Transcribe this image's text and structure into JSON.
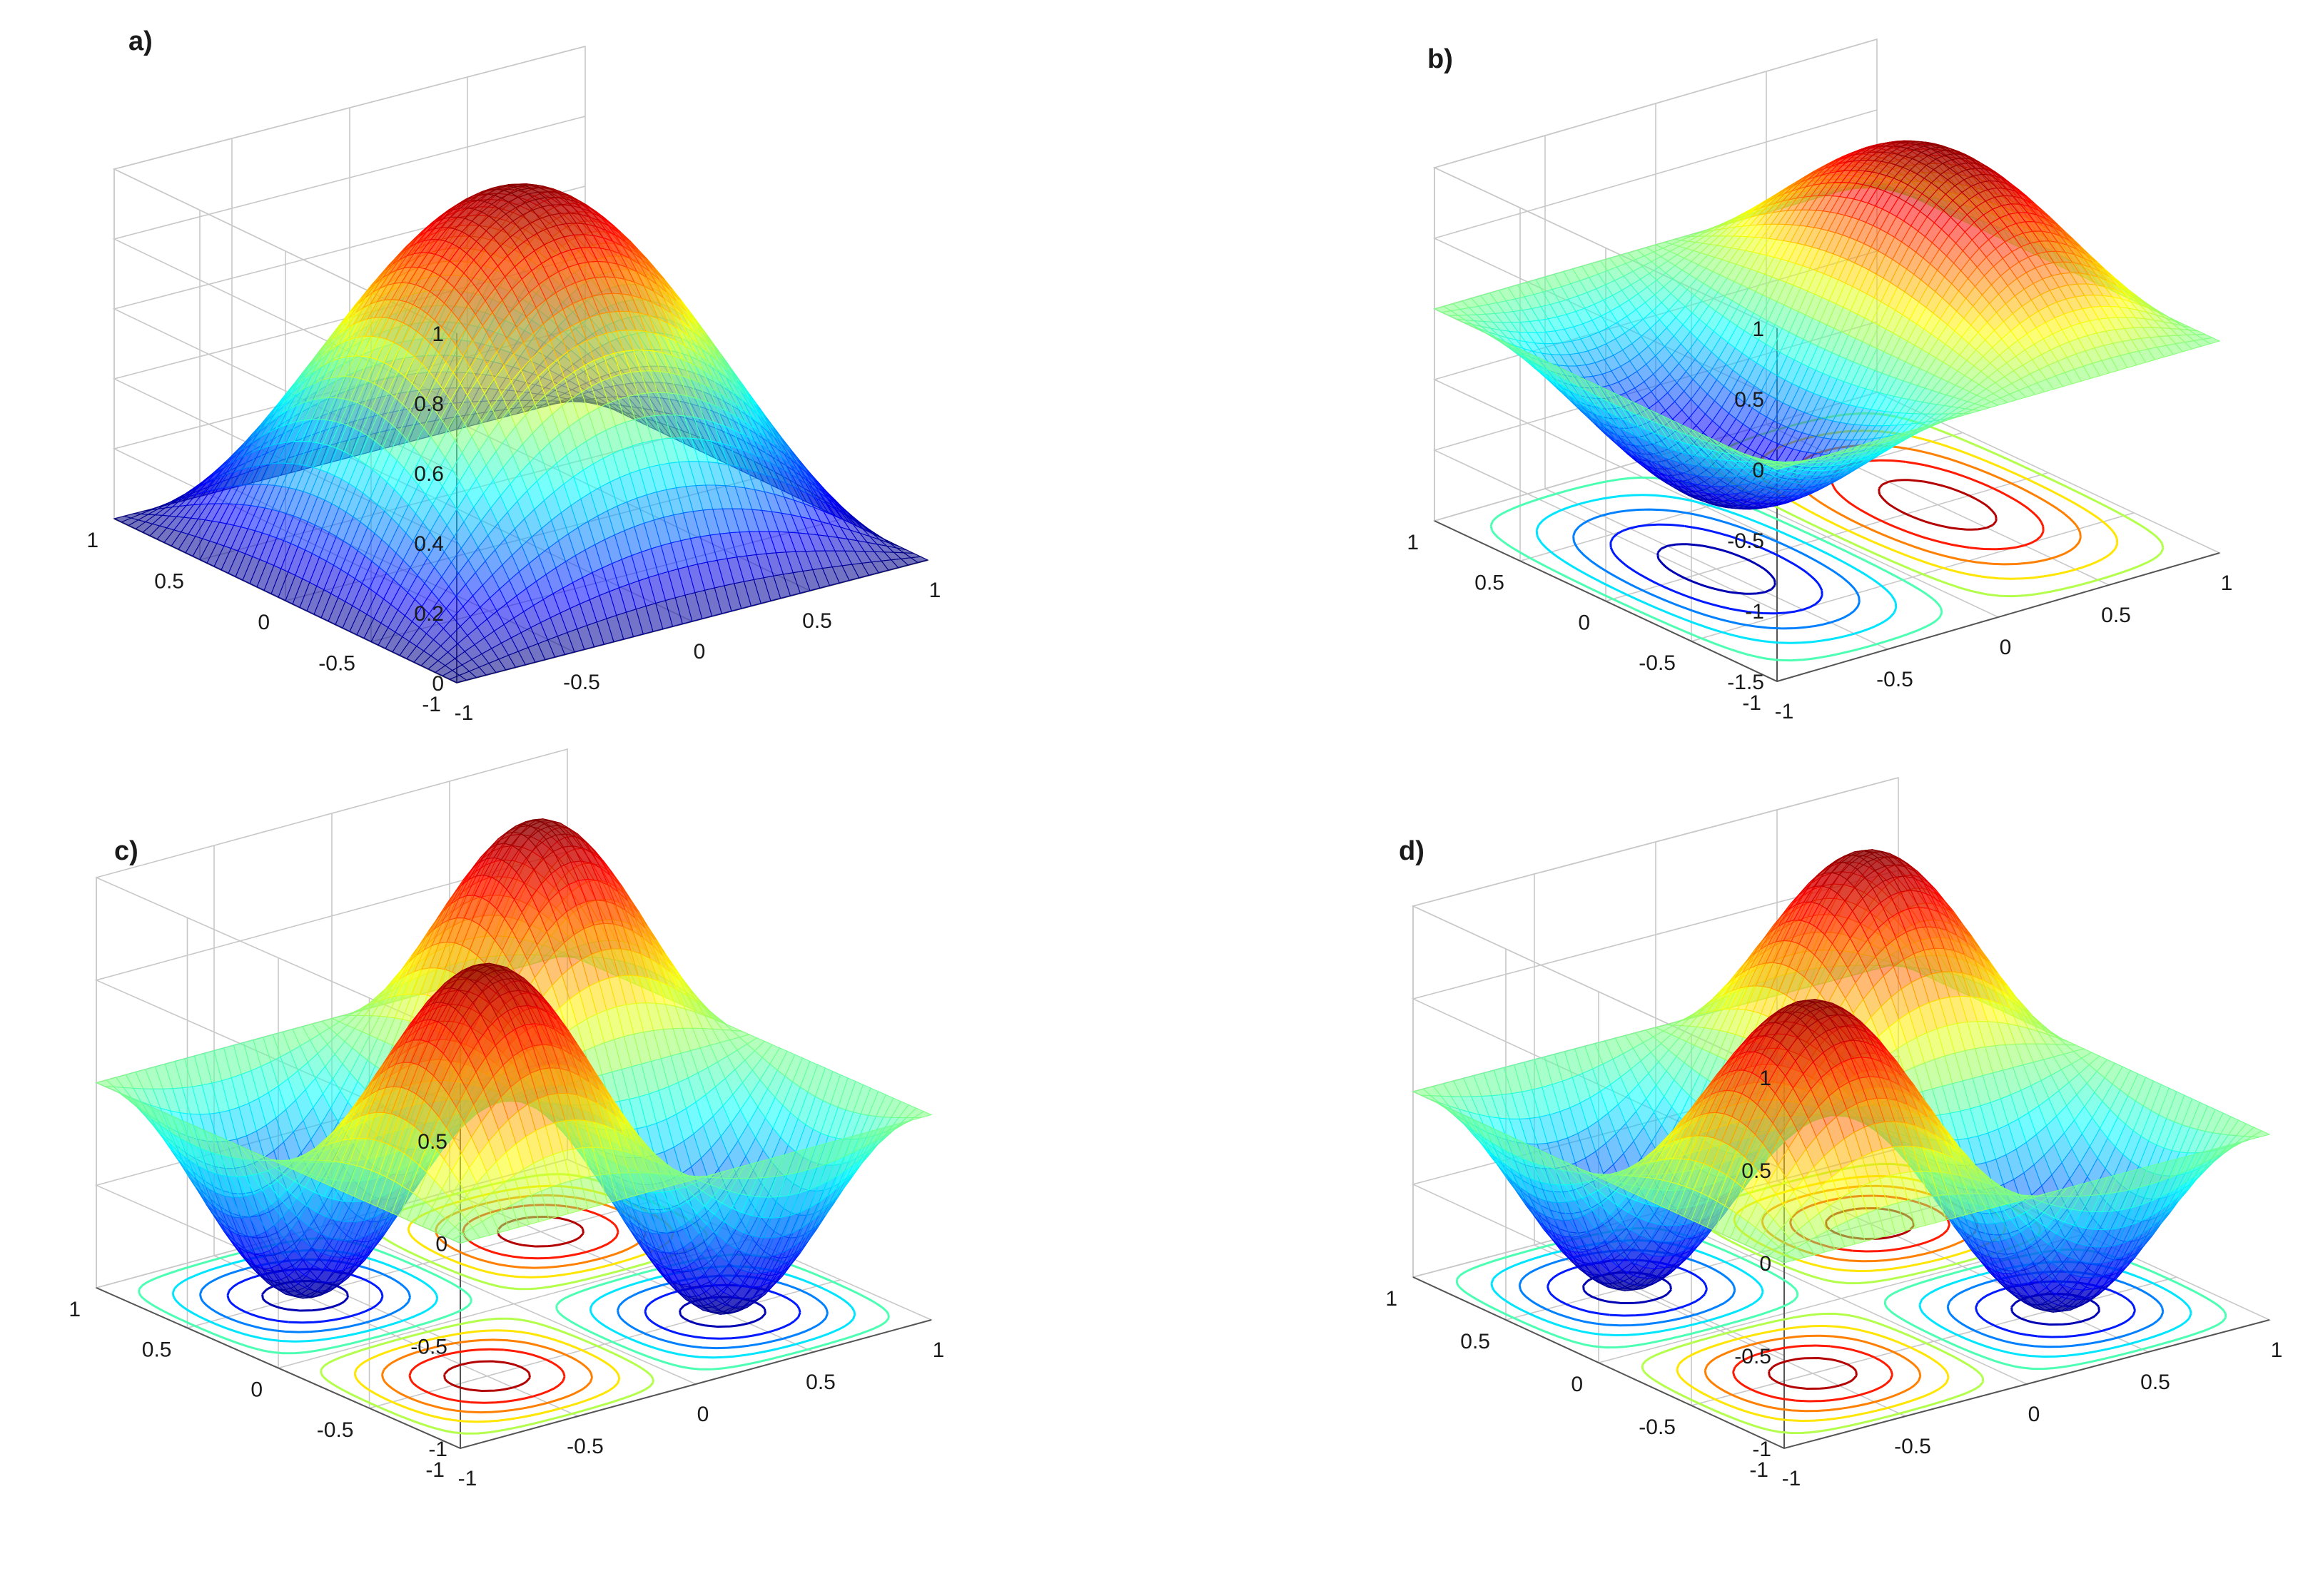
{
  "chart_data": [
    {
      "panel": "a)",
      "type": "surface3d",
      "function": "cos(pi*x/2)*cos(pi*y/2)",
      "x": [
        -1,
        1
      ],
      "y": [
        -1,
        1
      ],
      "zlim": [
        0,
        1
      ],
      "ztick_labels": [
        "0",
        "0.2",
        "0.4",
        "0.6",
        "0.8",
        "1"
      ],
      "ztick_values": [
        0,
        0.2,
        0.4,
        0.6,
        0.8,
        1
      ],
      "xtick_labels": [
        "-1",
        "-0.5",
        "0",
        "0.5",
        "1"
      ],
      "ytick_labels": [
        "-1",
        "-0.5",
        "0",
        "0.5",
        "1"
      ],
      "contour": false,
      "colormap": "jet"
    },
    {
      "panel": "b)",
      "type": "surface3d",
      "function": "sin(pi*x)*cos(pi*y/2)",
      "x": [
        -1,
        1
      ],
      "y": [
        -1,
        1
      ],
      "zlim": [
        -1.5,
        1
      ],
      "ztick_labels": [
        "-1.5",
        "-1",
        "-0.5",
        "0",
        "0.5",
        "1"
      ],
      "ztick_values": [
        -1.5,
        -1,
        -0.5,
        0,
        0.5,
        1
      ],
      "xtick_labels": [
        "-1",
        "-0.5",
        "0",
        "0.5",
        "1"
      ],
      "ytick_labels": [
        "-1",
        "-0.5",
        "0",
        "0.5",
        "1"
      ],
      "contour": true,
      "colormap": "jet"
    },
    {
      "panel": "c)",
      "type": "surface3d",
      "function": "sin(pi*x)*sin(pi*y)",
      "x": [
        -1,
        1
      ],
      "y": [
        -1,
        1
      ],
      "zlim": [
        -1,
        1
      ],
      "ztick_labels": [
        "-1",
        "-0.5",
        "0",
        "0.5"
      ],
      "ztick_values": [
        -1,
        -0.5,
        0,
        0.5
      ],
      "xtick_labels": [
        "-1",
        "-0.5",
        "0",
        "0.5",
        "1"
      ],
      "ytick_labels": [
        "-1",
        "-0.5",
        "0",
        "0.5",
        "1"
      ],
      "contour": true,
      "colormap": "jet"
    },
    {
      "panel": "d)",
      "type": "surface3d",
      "function": "sin(pi*x)*sin(pi*y)",
      "x": [
        -1,
        1
      ],
      "y": [
        -1,
        1
      ],
      "zlim": [
        -1,
        1
      ],
      "ztick_labels": [
        "-1",
        "-0.5",
        "0",
        "0.5",
        "1"
      ],
      "ztick_values": [
        -1,
        -0.5,
        0,
        0.5,
        1
      ],
      "xtick_labels": [
        "-1",
        "-0.5",
        "0",
        "0.5",
        "1"
      ],
      "ytick_labels": [
        "-1",
        "-0.5",
        "0",
        "0.5",
        "1"
      ],
      "contour": true,
      "colormap": "jet"
    }
  ]
}
